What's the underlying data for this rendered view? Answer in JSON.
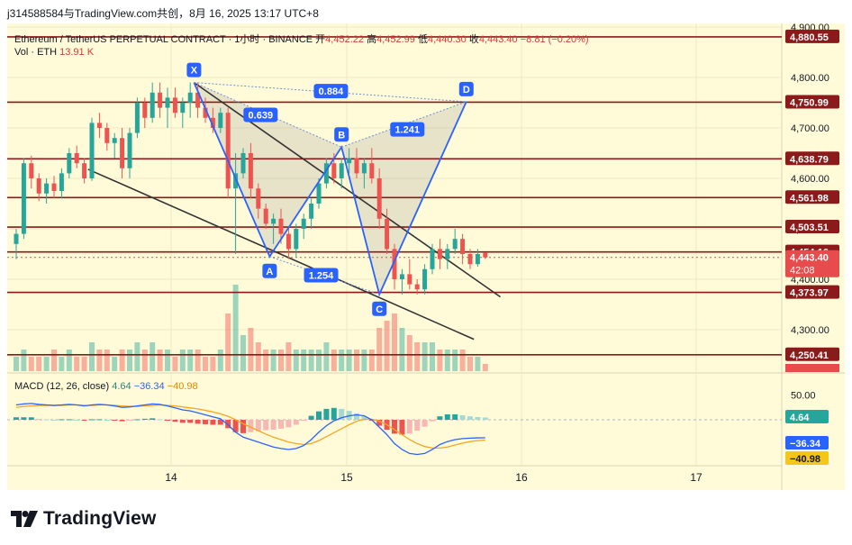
{
  "header": {
    "caption": "j314588584与TradingView.com共创，8月 16, 2025 13:17 UTC+8"
  },
  "brand": {
    "name": "TradingView",
    "logo_icon": "tradingview-logo-icon"
  },
  "legend": {
    "symbol": "Ethereum / TetherUS PERPETUAL CONTRACT · 1小时 · BINANCE",
    "open_label": "开",
    "open": "4,452.22",
    "high_label": "高",
    "high": "4,452.99",
    "low_label": "低",
    "low": "4,440.30",
    "close_label": "收",
    "close": "4,443.40",
    "change": "−8.81 (−0.20%)",
    "vol_label": "Vol · ETH",
    "vol_value": "13.91 K",
    "macd_label": "MACD (12, 26, close)",
    "macd_hist": "4.64",
    "macd_line": "−36.34",
    "macd_signal": "−40.98"
  },
  "colors": {
    "background": "#fffbd9",
    "up": "#26a69a",
    "down": "#ef5350",
    "level_line": "#8b1a1a",
    "pattern_line": "#2962ff",
    "trend_line": "#333333",
    "macd_line": "#2962ff",
    "signal_line": "#f5a623"
  },
  "chart_data": [
    {
      "type": "candlestick",
      "x_ticks": [
        "14",
        "15",
        "16",
        "17"
      ],
      "ylim": [
        4230,
        4905
      ],
      "y_ticks": [
        4900,
        4800,
        4700,
        4600,
        4500,
        4400,
        4300
      ],
      "y_tick_labels": [
        "4,900.00",
        "4,800.00",
        "4,700.00",
        "4,600.00",
        "4,500.00",
        "4,400.00",
        "4,300.00"
      ],
      "price_levels": [
        4880.55,
        4750.99,
        4638.79,
        4561.98,
        4503.51,
        4454.16,
        4443.4,
        4373.97,
        4250.41
      ],
      "price_level_labels": [
        "4,880.55",
        "4,750.99",
        "4,638.79",
        "4,561.98",
        "4,503.51",
        "4,454.16",
        "4,443.40",
        "4,373.97",
        "4,250.41"
      ],
      "current_price": "4,443.40",
      "countdown": "42:08",
      "pattern": {
        "points": [
          {
            "label": "X",
            "t": 23.5,
            "price": 4790
          },
          {
            "label": "A",
            "t": 33.5,
            "price": 4445
          },
          {
            "label": "B",
            "t": 43,
            "price": 4662
          },
          {
            "label": "C",
            "t": 48,
            "price": 4370
          },
          {
            "label": "D",
            "t": 59.5,
            "price": 4752
          }
        ],
        "ratios": [
          {
            "label": "0.639",
            "t": 32.3,
            "price": 4726
          },
          {
            "label": "0.884",
            "t": 41.6,
            "price": 4773
          },
          {
            "label": "1.241",
            "t": 51.7,
            "price": 4697
          },
          {
            "label": "1.254",
            "t": 40.3,
            "price": 4408
          }
        ]
      },
      "trend_lines": [
        {
          "from": {
            "t": 23.5,
            "price": 4790
          },
          "to": {
            "t": 64,
            "price": 4365
          }
        },
        {
          "from": {
            "t": 9.5,
            "price": 4618
          },
          "to": {
            "t": 60.5,
            "price": 4281
          }
        }
      ],
      "candles": [
        [
          4470,
          4500,
          4440,
          4490
        ],
        [
          4490,
          4640,
          4480,
          4630
        ],
        [
          4630,
          4645,
          4580,
          4600
        ],
        [
          4600,
          4610,
          4555,
          4570
        ],
        [
          4570,
          4600,
          4550,
          4590
        ],
        [
          4590,
          4605,
          4560,
          4575
        ],
        [
          4575,
          4620,
          4560,
          4610
        ],
        [
          4610,
          4660,
          4600,
          4650
        ],
        [
          4650,
          4665,
          4620,
          4630
        ],
        [
          4630,
          4640,
          4590,
          4600
        ],
        [
          4600,
          4720,
          4595,
          4710
        ],
        [
          4710,
          4730,
          4680,
          4700
        ],
        [
          4700,
          4710,
          4655,
          4670
        ],
        [
          4670,
          4690,
          4640,
          4680
        ],
        [
          4680,
          4700,
          4600,
          4620
        ],
        [
          4620,
          4700,
          4600,
          4690
        ],
        [
          4690,
          4760,
          4680,
          4750
        ],
        [
          4750,
          4760,
          4700,
          4720
        ],
        [
          4720,
          4790,
          4710,
          4770
        ],
        [
          4770,
          4790,
          4720,
          4740
        ],
        [
          4740,
          4780,
          4700,
          4760
        ],
        [
          4760,
          4780,
          4720,
          4730
        ],
        [
          4730,
          4760,
          4700,
          4750
        ],
        [
          4750,
          4790,
          4720,
          4770
        ],
        [
          4770,
          4790,
          4720,
          4740
        ],
        [
          4740,
          4760,
          4710,
          4720
        ],
        [
          4720,
          4740,
          4690,
          4700
        ],
        [
          4700,
          4740,
          4690,
          4730
        ],
        [
          4730,
          4740,
          4560,
          4580
        ],
        [
          4580,
          4650,
          4450,
          4610
        ],
        [
          4610,
          4660,
          4600,
          4650
        ],
        [
          4650,
          4670,
          4560,
          4580
        ],
        [
          4580,
          4590,
          4520,
          4540
        ],
        [
          4540,
          4550,
          4500,
          4510
        ],
        [
          4510,
          4530,
          4470,
          4520
        ],
        [
          4520,
          4540,
          4470,
          4490
        ],
        [
          4490,
          4500,
          4440,
          4460
        ],
        [
          4460,
          4510,
          4445,
          4500
        ],
        [
          4500,
          4530,
          4480,
          4520
        ],
        [
          4520,
          4560,
          4500,
          4550
        ],
        [
          4550,
          4600,
          4540,
          4590
        ],
        [
          4590,
          4640,
          4580,
          4630
        ],
        [
          4630,
          4650,
          4590,
          4600
        ],
        [
          4600,
          4640,
          4580,
          4630
        ],
        [
          4630,
          4660,
          4610,
          4640
        ],
        [
          4640,
          4660,
          4600,
          4610
        ],
        [
          4610,
          4640,
          4580,
          4630
        ],
        [
          4630,
          4660,
          4590,
          4600
        ],
        [
          4600,
          4620,
          4500,
          4520
        ],
        [
          4520,
          4540,
          4450,
          4460
        ],
        [
          4460,
          4470,
          4380,
          4400
        ],
        [
          4400,
          4420,
          4370,
          4410
        ],
        [
          4410,
          4440,
          4380,
          4390
        ],
        [
          4390,
          4400,
          4370,
          4380
        ],
        [
          4380,
          4430,
          4370,
          4420
        ],
        [
          4420,
          4470,
          4410,
          4460
        ],
        [
          4460,
          4480,
          4420,
          4440
        ],
        [
          4440,
          4470,
          4420,
          4460
        ],
        [
          4460,
          4500,
          4450,
          4480
        ],
        [
          4480,
          4490,
          4430,
          4450
        ],
        [
          4450,
          4460,
          4420,
          4430
        ],
        [
          4430,
          4460,
          4425,
          4450
        ],
        [
          4452.22,
          4452.99,
          4440.3,
          4443.4
        ]
      ],
      "volumes": [
        2,
        3,
        2,
        2,
        2,
        3,
        2,
        3,
        2,
        2,
        4,
        3,
        3,
        2,
        3,
        3,
        4,
        3,
        4,
        3,
        3,
        2,
        3,
        3,
        3,
        2,
        2,
        3,
        8,
        12,
        5,
        6,
        4,
        3,
        3,
        3,
        4,
        3,
        3,
        3,
        3,
        4,
        3,
        3,
        3,
        3,
        3,
        3,
        6,
        7,
        8,
        6,
        5,
        4,
        4,
        4,
        3,
        3,
        3,
        3,
        2,
        2,
        1
      ],
      "macd": {
        "ylim": [
          -90,
          80
        ],
        "y_tick_label": "50.00",
        "macd": [
          30,
          32,
          33,
          31,
          30,
          29,
          30,
          31,
          30,
          28,
          30,
          31,
          30,
          28,
          25,
          26,
          28,
          30,
          32,
          31,
          28,
          24,
          20,
          18,
          14,
          10,
          6,
          2,
          -10,
          -25,
          -35,
          -40,
          -45,
          -50,
          -55,
          -58,
          -60,
          -58,
          -52,
          -40,
          -25,
          -12,
          -2,
          4,
          8,
          10,
          8,
          0,
          -15,
          -30,
          -48,
          -60,
          -68,
          -70,
          -68,
          -60,
          -50,
          -44,
          -40,
          -38,
          -37,
          -36.5,
          -36.34
        ],
        "signal": [
          25,
          27,
          28,
          29,
          29,
          29,
          29,
          30,
          30,
          29,
          29,
          30,
          30,
          29,
          28,
          27,
          27,
          28,
          29,
          30,
          29,
          28,
          26,
          24,
          22,
          19,
          16,
          12,
          7,
          0,
          -8,
          -15,
          -22,
          -29,
          -35,
          -40,
          -45,
          -48,
          -50,
          -48,
          -42,
          -34,
          -26,
          -18,
          -10,
          -3,
          1,
          1,
          -3,
          -10,
          -20,
          -30,
          -40,
          -48,
          -54,
          -57,
          -57,
          -55,
          -51,
          -47,
          -44,
          -42,
          -40.98
        ],
        "histogram": [
          5,
          5,
          5,
          2,
          1,
          0,
          1,
          1,
          0,
          -1,
          1,
          1,
          0,
          -1,
          -3,
          -1,
          1,
          2,
          3,
          1,
          -1,
          -4,
          -6,
          -6,
          -8,
          -9,
          -10,
          -10,
          -17,
          -25,
          -27,
          -25,
          -23,
          -21,
          -20,
          -18,
          -15,
          -10,
          -2,
          8,
          17,
          22,
          24,
          22,
          18,
          13,
          7,
          -1,
          -12,
          -20,
          -28,
          -30,
          -28,
          -22,
          -14,
          -3,
          7,
          11,
          11,
          9,
          7,
          5.5,
          4.64
        ]
      }
    }
  ]
}
